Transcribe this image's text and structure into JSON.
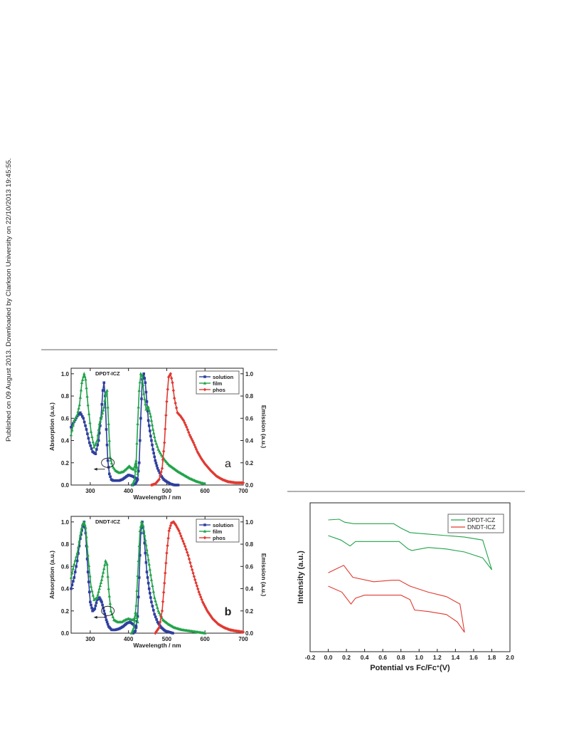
{
  "page": {
    "sidebar_text": "Published on 09 August 2013. Downloaded by Clarkson University on 22/10/2013 19:45:55."
  },
  "chart_data": [
    {
      "type": "line",
      "panel_letter": "a",
      "title": "DPDT-ICZ",
      "xlabel": "Wavelength / nm",
      "ylabel": "Absorption (a.u.)",
      "ylabel_right": "Emission (a.u.)",
      "xlim": [
        250,
        700
      ],
      "ylim": [
        0,
        1.05
      ],
      "xticks": [
        "300",
        "400",
        "500",
        "600",
        "700"
      ],
      "yticks": [
        "0.0",
        "0.2",
        "0.4",
        "0.6",
        "0.8",
        "1.0"
      ],
      "legend_position": "top-right",
      "legend": [
        "solution",
        "film",
        "phos"
      ],
      "series": [
        {
          "name": "solution",
          "color": "#2e3f9e",
          "marker": "square",
          "axis": "left",
          "x": [
            250,
            258,
            266,
            274,
            282,
            290,
            298,
            306,
            314,
            322,
            328,
            333,
            336,
            339,
            342,
            346,
            350,
            355,
            360,
            368,
            376,
            384,
            392,
            400,
            410,
            420
          ],
          "y": [
            0.52,
            0.57,
            0.62,
            0.65,
            0.6,
            0.5,
            0.38,
            0.3,
            0.28,
            0.4,
            0.6,
            0.85,
            0.92,
            0.8,
            0.5,
            0.22,
            0.1,
            0.05,
            0.04,
            0.04,
            0.04,
            0.05,
            0.07,
            0.09,
            0.08,
            0.06
          ]
        },
        {
          "name": "solution",
          "color": "#2e3f9e",
          "marker": "square",
          "axis": "right",
          "x": [
            410,
            418,
            424,
            428,
            432,
            436,
            440,
            444,
            448,
            452,
            458,
            464,
            470,
            476,
            484,
            492,
            500,
            510,
            520,
            530
          ],
          "y": [
            0.0,
            0.01,
            0.05,
            0.2,
            0.6,
            0.95,
            1.0,
            0.92,
            0.75,
            0.58,
            0.44,
            0.32,
            0.22,
            0.15,
            0.09,
            0.05,
            0.03,
            0.01,
            0.0,
            0.0
          ]
        },
        {
          "name": "film",
          "color": "#22a34a",
          "marker": "triangle",
          "axis": "left",
          "x": [
            250,
            258,
            266,
            272,
            278,
            284,
            288,
            294,
            302,
            310,
            318,
            324,
            330,
            336,
            340,
            344,
            348,
            352,
            358,
            366,
            376,
            386,
            396,
            402,
            408,
            414,
            420,
            424
          ],
          "y": [
            0.45,
            0.58,
            0.63,
            0.72,
            0.92,
            1.0,
            0.95,
            0.72,
            0.48,
            0.34,
            0.4,
            0.55,
            0.62,
            0.7,
            0.82,
            0.85,
            0.55,
            0.25,
            0.17,
            0.13,
            0.11,
            0.12,
            0.15,
            0.17,
            0.15,
            0.14,
            0.22,
            0.1
          ]
        },
        {
          "name": "film",
          "color": "#22a34a",
          "marker": "triangle",
          "axis": "right",
          "x": [
            410,
            416,
            420,
            424,
            428,
            432,
            436,
            440,
            446,
            452,
            458,
            464,
            470,
            478,
            486,
            496,
            506,
            518,
            530,
            545,
            560,
            580,
            600
          ],
          "y": [
            0.0,
            0.05,
            0.2,
            0.55,
            0.85,
            1.0,
            0.98,
            0.82,
            0.68,
            0.7,
            0.62,
            0.5,
            0.4,
            0.32,
            0.27,
            0.22,
            0.18,
            0.15,
            0.12,
            0.09,
            0.06,
            0.03,
            0.01
          ]
        },
        {
          "name": "phos",
          "color": "#e03a32",
          "marker": "diamond",
          "axis": "right",
          "x": [
            460,
            470,
            480,
            488,
            494,
            500,
            505,
            510,
            515,
            520,
            528,
            536,
            544,
            552,
            560,
            570,
            580,
            590,
            600,
            615,
            630,
            645,
            660,
            680,
            700
          ],
          "y": [
            0.0,
            0.01,
            0.05,
            0.15,
            0.38,
            0.75,
            0.97,
            1.0,
            0.92,
            0.78,
            0.65,
            0.62,
            0.58,
            0.52,
            0.45,
            0.38,
            0.3,
            0.24,
            0.19,
            0.13,
            0.08,
            0.05,
            0.03,
            0.02,
            0.02
          ]
        }
      ]
    },
    {
      "type": "line",
      "panel_letter": "b",
      "title": "DNDT-ICZ",
      "xlabel": "Wavelength / nm",
      "ylabel": "Absorption (a.u.)",
      "ylabel_right": "Emission (a.u.)",
      "xlim": [
        250,
        700
      ],
      "ylim": [
        0,
        1.05
      ],
      "xticks": [
        "300",
        "400",
        "500",
        "600",
        "700"
      ],
      "yticks": [
        "0.0",
        "0.2",
        "0.4",
        "0.6",
        "0.8",
        "1.0"
      ],
      "legend_position": "top-right",
      "legend": [
        "solution",
        "film",
        "phos"
      ],
      "series": [
        {
          "name": "solution",
          "color": "#2e3f9e",
          "marker": "square",
          "axis": "left",
          "x": [
            250,
            258,
            266,
            274,
            280,
            284,
            288,
            294,
            300,
            306,
            312,
            318,
            324,
            330,
            336,
            342,
            348,
            356,
            366,
            376,
            386,
            396,
            404,
            412,
            420
          ],
          "y": [
            0.4,
            0.5,
            0.65,
            0.85,
            0.96,
            1.0,
            0.9,
            0.55,
            0.28,
            0.2,
            0.22,
            0.3,
            0.32,
            0.28,
            0.2,
            0.12,
            0.06,
            0.03,
            0.03,
            0.04,
            0.06,
            0.09,
            0.1,
            0.08,
            0.05
          ]
        },
        {
          "name": "solution",
          "color": "#2e3f9e",
          "marker": "square",
          "axis": "right",
          "x": [
            412,
            418,
            424,
            428,
            432,
            436,
            440,
            444,
            448,
            454,
            460,
            468,
            476,
            486,
            496,
            506,
            516
          ],
          "y": [
            0.0,
            0.02,
            0.15,
            0.5,
            0.9,
            1.0,
            0.9,
            0.72,
            0.55,
            0.4,
            0.28,
            0.17,
            0.1,
            0.05,
            0.02,
            0.01,
            0.0
          ]
        },
        {
          "name": "film",
          "color": "#22a34a",
          "marker": "triangle",
          "axis": "left",
          "x": [
            250,
            258,
            266,
            274,
            280,
            284,
            288,
            294,
            302,
            310,
            318,
            324,
            330,
            336,
            340,
            344,
            348,
            354,
            362,
            372,
            382,
            392,
            400,
            408,
            414,
            420,
            424
          ],
          "y": [
            0.5,
            0.62,
            0.72,
            0.88,
            0.98,
            1.0,
            0.95,
            0.7,
            0.42,
            0.3,
            0.32,
            0.4,
            0.48,
            0.58,
            0.65,
            0.62,
            0.4,
            0.2,
            0.12,
            0.1,
            0.1,
            0.12,
            0.13,
            0.12,
            0.12,
            0.18,
            0.1
          ]
        },
        {
          "name": "film",
          "color": "#22a34a",
          "marker": "triangle",
          "axis": "right",
          "x": [
            408,
            414,
            420,
            426,
            430,
            434,
            438,
            442,
            448,
            454,
            460,
            468,
            478,
            490,
            505,
            520,
            540,
            560,
            580,
            600
          ],
          "y": [
            0.0,
            0.05,
            0.25,
            0.65,
            0.92,
            1.0,
            0.97,
            0.88,
            0.75,
            0.62,
            0.48,
            0.32,
            0.2,
            0.12,
            0.08,
            0.05,
            0.03,
            0.02,
            0.01,
            0.0
          ]
        },
        {
          "name": "phos",
          "color": "#e03a32",
          "marker": "diamond",
          "axis": "right",
          "x": [
            470,
            480,
            488,
            494,
            500,
            506,
            512,
            518,
            524,
            532,
            540,
            548,
            556,
            564,
            574,
            584,
            594,
            606,
            620,
            635,
            650,
            665,
            680,
            700
          ],
          "y": [
            0.0,
            0.05,
            0.2,
            0.45,
            0.72,
            0.92,
            0.99,
            1.0,
            0.97,
            0.92,
            0.85,
            0.78,
            0.7,
            0.6,
            0.48,
            0.37,
            0.28,
            0.2,
            0.13,
            0.08,
            0.05,
            0.03,
            0.02,
            0.01
          ]
        }
      ]
    },
    {
      "type": "line",
      "title": "",
      "xlabel": "Potential vs Fc/Fc",
      "xlabel_superscript": "+",
      "xlabel_unit": "(V)",
      "ylabel": "Intensity (a.u.)",
      "xlim": [
        -0.2,
        2.0
      ],
      "ylim": [
        0,
        1
      ],
      "xticks": [
        "-0.2",
        "0.0",
        "0.2",
        "0.4",
        "0.6",
        "0.8",
        "1.0",
        "1.2",
        "1.4",
        "1.6",
        "1.8",
        "2.0"
      ],
      "legend_position": "top-right",
      "legend": [
        "DPDT-ICZ",
        "DNDT-ICZ"
      ],
      "series": [
        {
          "name": "DPDT-ICZ",
          "color": "#22a34a",
          "x": [
            0.0,
            0.12,
            0.18,
            0.28,
            0.5,
            0.72,
            0.8,
            0.9,
            1.1,
            1.3,
            1.5,
            1.7,
            1.8,
            1.7,
            1.5,
            1.3,
            1.1,
            0.92,
            0.88,
            0.78,
            0.5,
            0.3,
            0.24,
            0.14,
            0.0
          ],
          "y": [
            0.885,
            0.89,
            0.87,
            0.86,
            0.86,
            0.86,
            0.83,
            0.8,
            0.79,
            0.78,
            0.77,
            0.75,
            0.55,
            0.63,
            0.67,
            0.69,
            0.7,
            0.68,
            0.69,
            0.74,
            0.74,
            0.74,
            0.71,
            0.75,
            0.78
          ]
        },
        {
          "name": "DNDT-ICZ",
          "color": "#e03a32",
          "x": [
            0.0,
            0.1,
            0.17,
            0.27,
            0.5,
            0.7,
            0.78,
            0.9,
            1.1,
            1.3,
            1.45,
            1.5,
            1.42,
            1.3,
            1.1,
            0.95,
            0.9,
            0.8,
            0.6,
            0.4,
            0.3,
            0.25,
            0.15,
            0.0
          ],
          "y": [
            0.53,
            0.56,
            0.58,
            0.5,
            0.47,
            0.48,
            0.48,
            0.44,
            0.4,
            0.37,
            0.32,
            0.13,
            0.2,
            0.25,
            0.27,
            0.28,
            0.35,
            0.38,
            0.38,
            0.38,
            0.36,
            0.32,
            0.4,
            0.44
          ]
        }
      ]
    }
  ]
}
